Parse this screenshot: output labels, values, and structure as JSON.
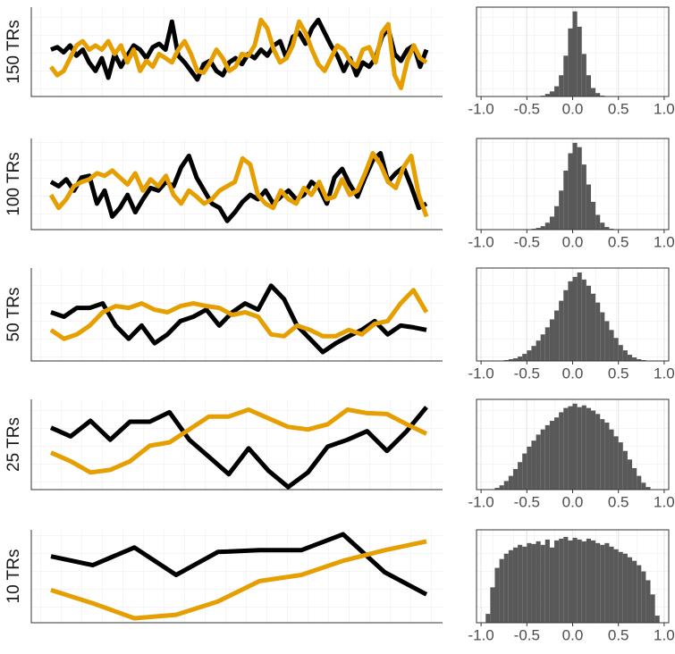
{
  "chart_data": [
    {
      "type": "line",
      "ylabel": "150 TRs",
      "ylim": [
        0,
        105
      ],
      "series": [
        {
          "color": "#000000",
          "values": [
            55,
            58,
            52,
            60,
            48,
            55,
            40,
            30,
            45,
            22,
            50,
            35,
            48,
            60,
            55,
            45,
            58,
            62,
            55,
            88,
            48,
            40,
            30,
            20,
            38,
            42,
            30,
            25,
            40,
            45,
            38,
            50,
            45,
            55,
            48,
            60,
            65,
            45,
            70,
            75,
            62,
            80,
            90,
            75,
            60,
            48,
            30,
            45,
            25,
            40,
            35,
            45,
            70,
            80,
            50,
            42,
            55,
            60,
            35,
            55
          ]
        },
        {
          "color": "#E69F00",
          "values": [
            35,
            25,
            30,
            45,
            60,
            65,
            55,
            60,
            55,
            65,
            50,
            60,
            40,
            55,
            30,
            42,
            35,
            50,
            45,
            40,
            55,
            65,
            50,
            30,
            28,
            40,
            55,
            45,
            30,
            35,
            50,
            48,
            60,
            90,
            80,
            55,
            40,
            45,
            60,
            88,
            75,
            55,
            38,
            30,
            45,
            60,
            55,
            42,
            35,
            55,
            58,
            40,
            75,
            85,
            25,
            10,
            42,
            60,
            45,
            40
          ]
        }
      ]
    },
    {
      "type": "histogram",
      "color": "#595959",
      "xlim": [
        -1.05,
        1.05
      ],
      "ylim": [
        0,
        105
      ],
      "xticks": [
        {
          "value": -1,
          "label": "-1.0"
        },
        {
          "value": -0.5,
          "label": "-0.5"
        },
        {
          "value": 0,
          "label": "0.0"
        },
        {
          "value": 0.5,
          "label": "0.5"
        },
        {
          "value": 1,
          "label": "1.0"
        }
      ],
      "bins": [
        -0.35,
        -0.3,
        -0.25,
        -0.2,
        -0.15,
        -0.1,
        -0.05,
        0,
        0.05,
        0.1,
        0.15,
        0.2,
        0.25,
        0.3,
        0.35
      ],
      "values": [
        1,
        3,
        6,
        12,
        25,
        48,
        80,
        100,
        82,
        50,
        25,
        10,
        4,
        1
      ]
    },
    {
      "type": "line",
      "ylabel": "100 TRs",
      "ylim": [
        0,
        105
      ],
      "series": [
        {
          "color": "#000000",
          "values": [
            55,
            50,
            58,
            45,
            60,
            62,
            30,
            45,
            15,
            25,
            40,
            20,
            35,
            48,
            45,
            55,
            50,
            72,
            85,
            60,
            45,
            30,
            25,
            10,
            20,
            32,
            40,
            35,
            45,
            30,
            38,
            45,
            35,
            40,
            55,
            48,
            30,
            60,
            70,
            52,
            38,
            60,
            80,
            88,
            55,
            65,
            72,
            50,
            25,
            30
          ]
        },
        {
          "color": "#E69F00",
          "values": [
            40,
            25,
            35,
            50,
            55,
            58,
            65,
            62,
            68,
            60,
            52,
            65,
            45,
            58,
            50,
            62,
            40,
            30,
            45,
            38,
            30,
            35,
            45,
            50,
            55,
            82,
            75,
            40,
            30,
            25,
            45,
            35,
            30,
            48,
            40,
            55,
            35,
            38,
            58,
            40,
            45,
            65,
            88,
            75,
            55,
            48,
            72,
            85,
            40,
            15
          ]
        }
      ]
    },
    {
      "type": "histogram",
      "color": "#595959",
      "xlim": [
        -1.05,
        1.05
      ],
      "ylim": [
        0,
        105
      ],
      "xticks": [
        {
          "value": -1,
          "label": "-1.0"
        },
        {
          "value": -0.5,
          "label": "-0.5"
        },
        {
          "value": 0,
          "label": "0.0"
        },
        {
          "value": 0.5,
          "label": "0.5"
        },
        {
          "value": 1,
          "label": "1.0"
        }
      ],
      "bins": [
        -0.45,
        -0.4,
        -0.35,
        -0.3,
        -0.25,
        -0.2,
        -0.15,
        -0.1,
        -0.05,
        0,
        0.05,
        0.1,
        0.15,
        0.2,
        0.25,
        0.3,
        0.35,
        0.4,
        0.45
      ],
      "values": [
        1,
        2,
        4,
        8,
        15,
        27,
        45,
        68,
        88,
        100,
        95,
        75,
        52,
        32,
        17,
        8,
        3,
        1
      ]
    },
    {
      "type": "line",
      "ylabel": "50 TRs",
      "ylim": [
        0,
        105
      ],
      "series": [
        {
          "color": "#000000",
          "values": [
            55,
            50,
            60,
            60,
            65,
            40,
            25,
            40,
            20,
            30,
            45,
            50,
            58,
            40,
            55,
            65,
            58,
            85,
            70,
            40,
            25,
            10,
            20,
            28,
            35,
            45,
            30,
            40,
            38,
            35
          ]
        },
        {
          "color": "#E69F00",
          "values": [
            35,
            25,
            30,
            40,
            55,
            62,
            60,
            65,
            58,
            55,
            62,
            65,
            62,
            60,
            52,
            55,
            50,
            30,
            28,
            40,
            35,
            28,
            28,
            35,
            30,
            42,
            45,
            65,
            80,
            55
          ]
        }
      ]
    },
    {
      "type": "histogram",
      "color": "#595959",
      "xlim": [
        -1.05,
        1.05
      ],
      "ylim": [
        0,
        105
      ],
      "xticks": [
        {
          "value": -1,
          "label": "-1.0"
        },
        {
          "value": -0.5,
          "label": "-0.5"
        },
        {
          "value": 0,
          "label": "0.0"
        },
        {
          "value": 0.5,
          "label": "0.5"
        },
        {
          "value": 1,
          "label": "1.0"
        }
      ],
      "bins": [
        -0.75,
        -0.7,
        -0.65,
        -0.6,
        -0.55,
        -0.5,
        -0.45,
        -0.4,
        -0.35,
        -0.3,
        -0.25,
        -0.2,
        -0.15,
        -0.1,
        -0.05,
        0,
        0.05,
        0.1,
        0.15,
        0.2,
        0.25,
        0.3,
        0.35,
        0.4,
        0.45,
        0.5,
        0.55,
        0.6,
        0.65,
        0.7,
        0.75,
        0.8
      ],
      "values": [
        1,
        2,
        3,
        5,
        8,
        12,
        17,
        23,
        30,
        38,
        47,
        57,
        68,
        80,
        90,
        95,
        100,
        92,
        85,
        76,
        66,
        55,
        45,
        35,
        26,
        18,
        12,
        7,
        4,
        2,
        1
      ]
    },
    {
      "type": "line",
      "ylabel": "25 TRs",
      "ylim": [
        0,
        105
      ],
      "series": [
        {
          "color": "#000000",
          "values": [
            72,
            62,
            80,
            58,
            79,
            79,
            90,
            58,
            38,
            18,
            48,
            22,
            3,
            20,
            50,
            58,
            68,
            45,
            68,
            96
          ]
        },
        {
          "color": "#E69F00",
          "values": [
            43,
            33,
            20,
            23,
            33,
            51,
            55,
            70,
            85,
            85,
            93,
            83,
            73,
            70,
            76,
            93,
            89,
            88,
            76,
            65
          ]
        }
      ]
    },
    {
      "type": "histogram",
      "color": "#595959",
      "xlim": [
        -1.05,
        1.05
      ],
      "ylim": [
        0,
        105
      ],
      "xticks": [
        {
          "value": -1,
          "label": "-1.0"
        },
        {
          "value": -0.5,
          "label": "-0.5"
        },
        {
          "value": 0,
          "label": "0.0"
        },
        {
          "value": 0.5,
          "label": "0.5"
        },
        {
          "value": 1,
          "label": "1.0"
        }
      ],
      "bins": [
        -0.85,
        -0.8,
        -0.75,
        -0.7,
        -0.65,
        -0.6,
        -0.55,
        -0.5,
        -0.45,
        -0.4,
        -0.35,
        -0.3,
        -0.25,
        -0.2,
        -0.15,
        -0.1,
        -0.05,
        0,
        0.05,
        0.1,
        0.15,
        0.2,
        0.25,
        0.3,
        0.35,
        0.4,
        0.45,
        0.5,
        0.55,
        0.6,
        0.65,
        0.7,
        0.75,
        0.8,
        0.85
      ],
      "values": [
        2,
        5,
        10,
        16,
        24,
        32,
        42,
        50,
        57,
        64,
        70,
        75,
        80,
        84,
        90,
        95,
        97,
        100,
        96,
        98,
        95,
        92,
        88,
        82,
        78,
        70,
        62,
        55,
        45,
        35,
        25,
        16,
        8,
        3
      ]
    },
    {
      "type": "line",
      "ylabel": "10 TRs",
      "ylim": [
        0,
        105
      ],
      "series": [
        {
          "color": "#000000",
          "values": [
            75,
            65,
            85,
            54,
            80,
            82,
            82,
            100,
            57,
            32
          ]
        },
        {
          "color": "#E69F00",
          "values": [
            37,
            22,
            5,
            9,
            24,
            47,
            54,
            70,
            82,
            92
          ]
        }
      ]
    },
    {
      "type": "histogram",
      "color": "#595959",
      "xlim": [
        -1.05,
        1.05
      ],
      "ylim": [
        0,
        105
      ],
      "xticks": [
        {
          "value": -1,
          "label": "-1.0"
        },
        {
          "value": -0.5,
          "label": "-0.5"
        },
        {
          "value": 0,
          "label": "0.0"
        },
        {
          "value": 0.5,
          "label": "0.5"
        },
        {
          "value": 1,
          "label": "1.0"
        }
      ],
      "bins": [
        -0.95,
        -0.9,
        -0.85,
        -0.8,
        -0.75,
        -0.7,
        -0.65,
        -0.6,
        -0.55,
        -0.5,
        -0.45,
        -0.4,
        -0.35,
        -0.3,
        -0.25,
        -0.2,
        -0.15,
        -0.1,
        -0.05,
        0,
        0.05,
        0.1,
        0.15,
        0.2,
        0.25,
        0.3,
        0.35,
        0.4,
        0.45,
        0.5,
        0.55,
        0.6,
        0.65,
        0.7,
        0.75,
        0.8,
        0.85,
        0.9,
        0.95
      ],
      "values": [
        10,
        40,
        62,
        72,
        78,
        82,
        85,
        88,
        86,
        90,
        89,
        92,
        88,
        94,
        85,
        93,
        95,
        97,
        93,
        96,
        94,
        92,
        95,
        93,
        90,
        88,
        90,
        86,
        83,
        80,
        78,
        74,
        70,
        65,
        58,
        48,
        32,
        8
      ]
    }
  ]
}
